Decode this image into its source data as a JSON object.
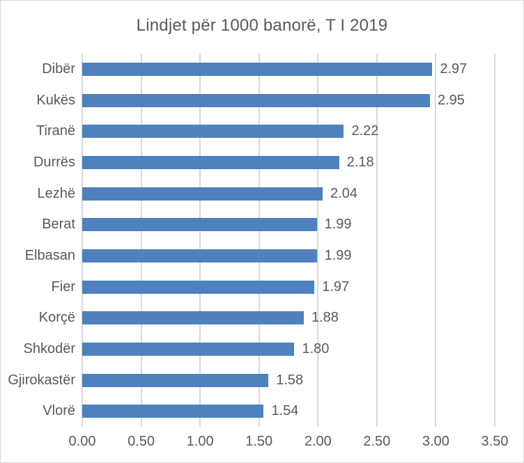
{
  "chart_data": {
    "type": "bar",
    "orientation": "horizontal",
    "title": "Lindjet për 1000 banorë, T I 2019",
    "categories": [
      "Dibër",
      "Kukës",
      "Tiranë",
      "Durrës",
      "Lezhë",
      "Berat",
      "Elbasan",
      "Fier",
      "Korçë",
      "Shkodër",
      "Gjirokastër",
      "Vlorë"
    ],
    "values": [
      2.97,
      2.95,
      2.22,
      2.18,
      2.04,
      1.99,
      1.99,
      1.97,
      1.88,
      1.8,
      1.58,
      1.54
    ],
    "value_labels": [
      "2.97",
      "2.95",
      "2.22",
      "2.18",
      "2.04",
      "1.99",
      "1.99",
      "1.97",
      "1.88",
      "1.80",
      "1.58",
      "1.54"
    ],
    "xlim": [
      0,
      3.5
    ],
    "x_ticks": [
      "0.00",
      "0.50",
      "1.00",
      "1.50",
      "2.00",
      "2.50",
      "3.00",
      "3.50"
    ],
    "x_tick_values": [
      0,
      0.5,
      1.0,
      1.5,
      2.0,
      2.5,
      3.0,
      3.5
    ],
    "grid": true,
    "legend": "none",
    "xlabel": "",
    "ylabel": "",
    "colors": {
      "bar": "#4e81bd",
      "gridline": "#d9d9d9",
      "text": "#595959",
      "chart_border": "#d9d9d9",
      "background": "#ffffff"
    }
  }
}
